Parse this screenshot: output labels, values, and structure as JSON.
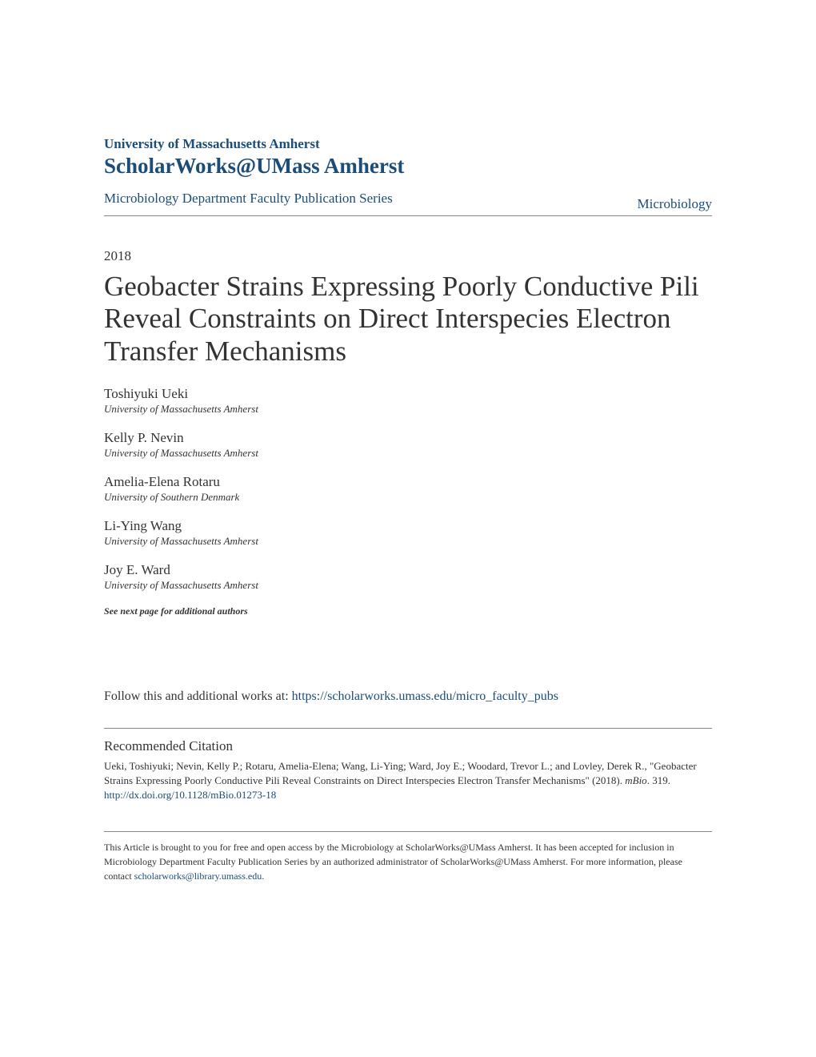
{
  "header": {
    "institution": "University of Massachusetts Amherst",
    "scholarworks": "ScholarWorks@UMass Amherst"
  },
  "breadcrumb": {
    "left": "Microbiology Department Faculty Publication Series",
    "right": "Microbiology"
  },
  "year": "2018",
  "title": "Geobacter Strains Expressing Poorly Conductive Pili Reveal Constraints on Direct Interspecies Electron Transfer Mechanisms",
  "authors": [
    {
      "name": "Toshiyuki Ueki",
      "affiliation": "University of Massachusetts Amherst"
    },
    {
      "name": "Kelly P. Nevin",
      "affiliation": "University of Massachusetts Amherst"
    },
    {
      "name": "Amelia-Elena Rotaru",
      "affiliation": "University of Southern Denmark"
    },
    {
      "name": "Li-Ying Wang",
      "affiliation": "University of Massachusetts Amherst"
    },
    {
      "name": "Joy E. Ward",
      "affiliation": "University of Massachusetts Amherst"
    }
  ],
  "see_next": "See next page for additional authors",
  "follow": {
    "prefix": "Follow this and additional works at: ",
    "url": "https://scholarworks.umass.edu/micro_faculty_pubs"
  },
  "citation": {
    "heading": "Recommended Citation",
    "text_part1": "Ueki, Toshiyuki; Nevin, Kelly P.; Rotaru, Amelia-Elena; Wang, Li-Ying; Ward, Joy E.; Woodard, Trevor L.; and Lovley, Derek R., \"Geobacter Strains Expressing Poorly Conductive Pili Reveal Constraints on Direct Interspecies Electron Transfer Mechanisms\" (2018). ",
    "journal": "mBio",
    "text_part2": ". 319.",
    "doi": "http://dx.doi.org/10.1128/mBio.01273-18"
  },
  "footer": {
    "text_part1": "This Article is brought to you for free and open access by the Microbiology at ScholarWorks@UMass Amherst. It has been accepted for inclusion in Microbiology Department Faculty Publication Series by an authorized administrator of ScholarWorks@UMass Amherst. For more information, please contact ",
    "email": "scholarworks@library.umass.edu",
    "text_part2": "."
  },
  "colors": {
    "link_blue": "#1a4d7a",
    "text_dark": "#333333",
    "divider": "#888888",
    "background": "#ffffff"
  },
  "typography": {
    "title_fontsize": 35,
    "body_fontsize": 17,
    "small_fontsize": 13,
    "footer_fontsize": 12,
    "scholarworks_fontsize": 27
  }
}
